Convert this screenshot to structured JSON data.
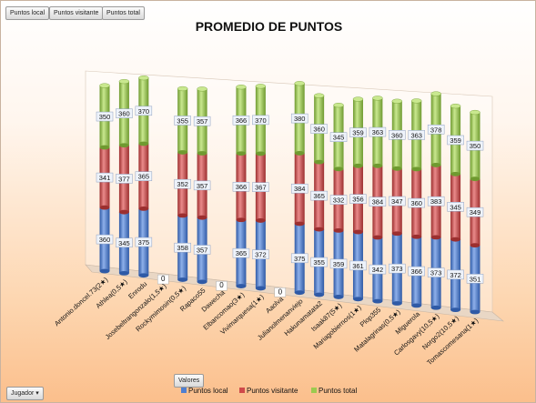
{
  "filter_buttons": [
    "Puntos local",
    "Puntos visitante",
    "Puntos total"
  ],
  "axis_button": "Jugador",
  "values_button": "Valores",
  "colors": {
    "local": "#4f7fd0",
    "visitante": "#cf4a4a",
    "total": "#9bca4f"
  },
  "chart_data": {
    "type": "bar",
    "stacked": true,
    "title": "PROMEDIO DE PUNTOS",
    "legend_position": "bottom",
    "categories": [
      "Antonio.doncel.73(2★)",
      "Athlea(0,5★)",
      "Enrodu",
      "Josebeltrangonzalo(1,5★)",
      "Rockymimosin(0,5★)",
      "Rapaco55",
      "Dawecha",
      "Elbancomao(3★)",
      "Vivimarquesa(1★)",
      "Aaolva",
      "Julianolmenanviejo",
      "Hakunamatata2",
      "Isaak87(5★)",
      "Mariagobiernos(1★)",
      "Plop355",
      "Matalagrinas(0,5★)",
      "Miguerola",
      "Carlosgavy(10,5★)",
      "Norgo2(10,5★)",
      "Tomascomesana(1★)"
    ],
    "series": [
      {
        "name": "Puntos local",
        "values": [
          360,
          345,
          375,
          0,
          358,
          357,
          0,
          365,
          372,
          0,
          375,
          355,
          359,
          361,
          342,
          373,
          366,
          373,
          372,
          351
        ]
      },
      {
        "name": "Puntos visitante",
        "values": [
          341,
          377,
          365,
          0,
          352,
          357,
          0,
          366,
          367,
          0,
          384,
          365,
          332,
          356,
          384,
          347,
          360,
          383,
          345,
          349
        ]
      },
      {
        "name": "Puntos total",
        "values": [
          350,
          360,
          370,
          0,
          355,
          357,
          0,
          366,
          370,
          0,
          380,
          360,
          345,
          359,
          363,
          360,
          363,
          378,
          359,
          350
        ]
      }
    ]
  }
}
